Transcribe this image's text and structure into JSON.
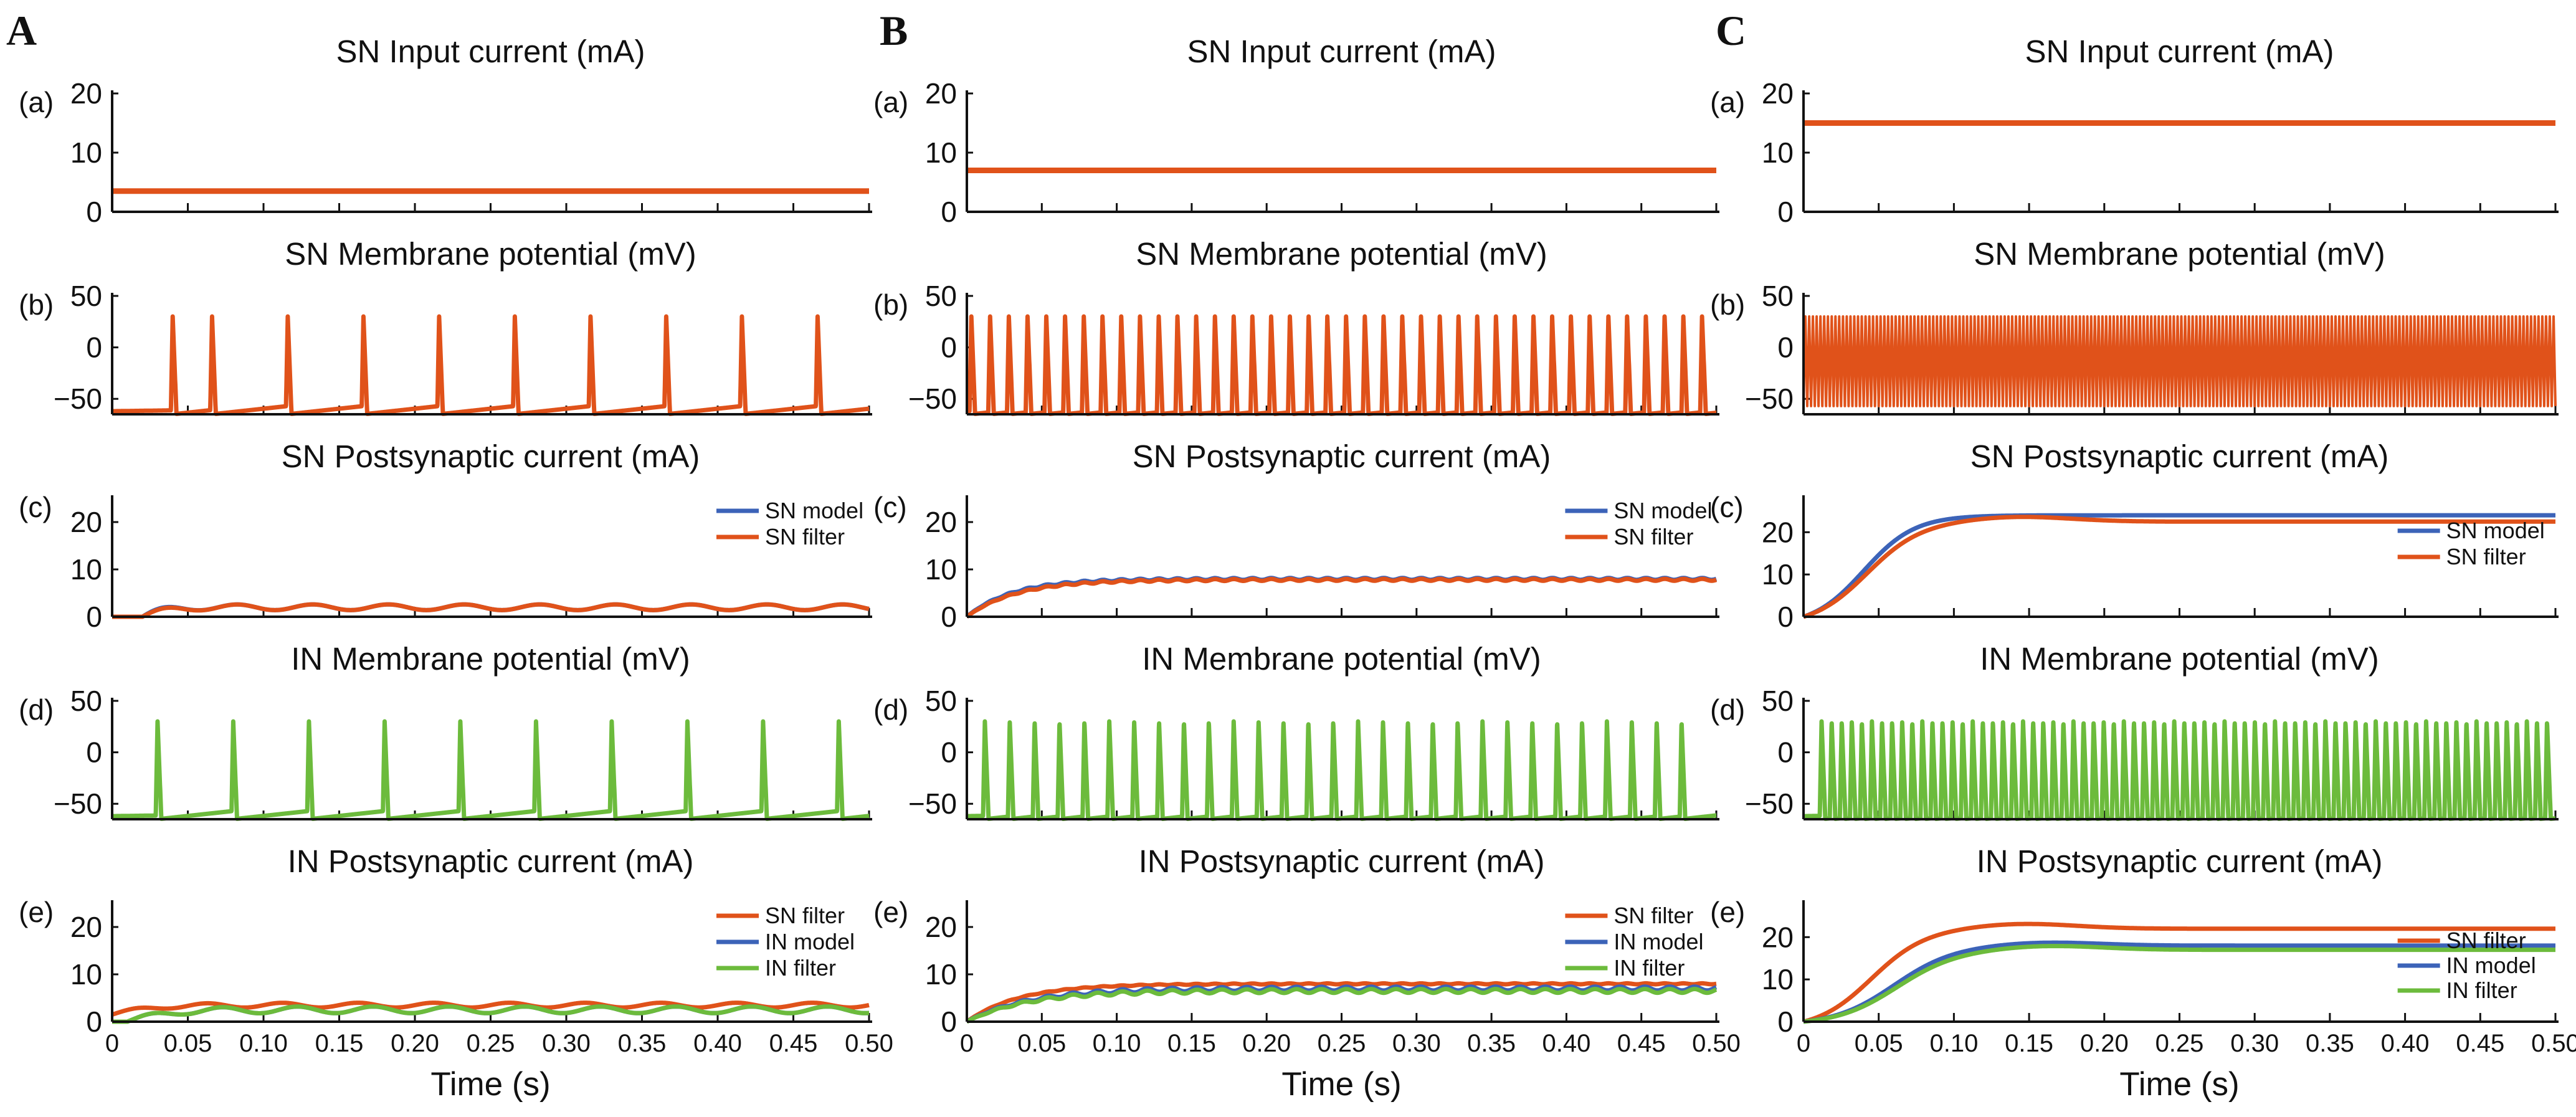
{
  "figure": {
    "columns": [
      "A",
      "B",
      "C"
    ],
    "colors": {
      "orange": "#E0521A",
      "blue": "#3C63B8",
      "green": "#6CBB3C"
    }
  },
  "chart_data": [
    {
      "column": "A",
      "panels": [
        {
          "label": "(a)",
          "type": "line",
          "title": "SN Input current (mA)",
          "yticks": [
            "20",
            "10",
            "0"
          ],
          "ylim": [
            0,
            20
          ],
          "series": [
            {
              "name": "SN input",
              "color": "#E0521A",
              "kind": "constant",
              "value": 3.5
            }
          ]
        },
        {
          "label": "(b)",
          "type": "line",
          "title": "SN Membrane potential (mV)",
          "yticks": [
            "50",
            "0",
            "−50"
          ],
          "ylim": [
            -65,
            50
          ],
          "series": [
            {
              "name": "SN membrane",
              "color": "#E0521A",
              "kind": "spikes",
              "spike_times": [
                0.04,
                0.066,
                0.116,
                0.166,
                0.216,
                0.266,
                0.316,
                0.366,
                0.416,
                0.466
              ]
            }
          ]
        },
        {
          "label": "(c)",
          "type": "line",
          "title": "SN Postsynaptic current (mA)",
          "yticks": [
            "20",
            "10",
            "0"
          ],
          "ylim": [
            0,
            25
          ],
          "legend": [
            "SN model",
            "SN filter"
          ],
          "series": [
            {
              "name": "SN model",
              "color": "#3C63B8",
              "kind": "ripple",
              "start": 0.02,
              "tau": 0.01,
              "level": 2.0,
              "amp": 0.6,
              "period": 0.05
            },
            {
              "name": "SN filter",
              "color": "#E0521A",
              "kind": "ripple",
              "start": 0.02,
              "tau": 0.012,
              "level": 2.0,
              "amp": 0.6,
              "period": 0.05
            }
          ]
        },
        {
          "label": "(d)",
          "type": "line",
          "title": "IN Membrane potential  (mV)",
          "yticks": [
            "50",
            "0",
            "−50"
          ],
          "ylim": [
            -65,
            50
          ],
          "series": [
            {
              "name": "IN membrane",
              "color": "#6CBB3C",
              "kind": "spikes",
              "spike_times": [
                0.03,
                0.08,
                0.13,
                0.18,
                0.23,
                0.28,
                0.33,
                0.38,
                0.43,
                0.48
              ]
            }
          ]
        },
        {
          "label": "(e)",
          "type": "line",
          "title": "IN Postsynaptic current (mA)",
          "yticks": [
            "20",
            "10",
            "0"
          ],
          "ylim": [
            0,
            25
          ],
          "legend": [
            "SN filter",
            "IN model",
            "IN filter"
          ],
          "series": [
            {
              "name": "SN filter",
              "color": "#E0521A",
              "kind": "ripple",
              "start": 0.0,
              "tau": 0.02,
              "level": 3.5,
              "amp": 0.5,
              "period": 0.05,
              "init": 1.5
            },
            {
              "name": "IN model",
              "color": "#3C63B8",
              "kind": "ripple",
              "start": 0.01,
              "tau": 0.02,
              "level": 2.5,
              "amp": 0.7,
              "period": 0.05
            },
            {
              "name": "IN filter",
              "color": "#6CBB3C",
              "kind": "ripple",
              "start": 0.01,
              "tau": 0.02,
              "level": 2.5,
              "amp": 0.7,
              "period": 0.05
            }
          ]
        }
      ]
    },
    {
      "column": "B",
      "panels": [
        {
          "label": "(a)",
          "type": "line",
          "title": "SN Input current (mA)",
          "yticks": [
            "20",
            "10",
            "0"
          ],
          "ylim": [
            0,
            20
          ],
          "series": [
            {
              "name": "SN input",
              "color": "#E0521A",
              "kind": "constant",
              "value": 7
            }
          ]
        },
        {
          "label": "(b)",
          "type": "line",
          "title": "SN Membrane potential  (mV)",
          "yticks": [
            "50",
            "0",
            "−50"
          ],
          "ylim": [
            -65,
            50
          ],
          "series": [
            {
              "name": "SN membrane",
              "color": "#E0521A",
              "kind": "train",
              "first": 0.003,
              "interval": 0.0125,
              "until": 0.496
            }
          ]
        },
        {
          "label": "(c)",
          "type": "line",
          "title": "SN Postsynaptic current (mA)",
          "yticks": [
            "20",
            "10",
            "0"
          ],
          "ylim": [
            0,
            25
          ],
          "legend": [
            "SN model",
            "SN filter"
          ],
          "series": [
            {
              "name": "SN model",
              "color": "#3C63B8",
              "kind": "rise",
              "start": 0.0,
              "tau": 0.03,
              "level": 8,
              "amp": 0.2,
              "period": 0.0125
            },
            {
              "name": "SN filter",
              "color": "#E0521A",
              "kind": "rise",
              "start": 0.0,
              "tau": 0.033,
              "level": 7.8,
              "amp": 0.2,
              "period": 0.0125
            }
          ]
        },
        {
          "label": "(d)",
          "type": "line",
          "title": "IN Membrane potential  (mV)",
          "yticks": [
            "50",
            "0",
            "−50"
          ],
          "ylim": [
            -65,
            50
          ],
          "series": [
            {
              "name": "IN membrane",
              "color": "#6CBB3C",
              "kind": "train",
              "first": 0.012,
              "interval": 0.0166,
              "until": 0.49
            }
          ]
        },
        {
          "label": "(e)",
          "type": "line",
          "title": "IN Postsynaptic current (mA)",
          "yticks": [
            "20",
            "10",
            "0"
          ],
          "ylim": [
            0,
            25
          ],
          "legend": [
            "SN filter",
            "IN model",
            "IN filter"
          ],
          "series": [
            {
              "name": "SN filter",
              "color": "#E0521A",
              "kind": "rise",
              "start": 0.0,
              "tau": 0.035,
              "level": 8,
              "amp": 0.1,
              "period": 0.0125
            },
            {
              "name": "IN model",
              "color": "#3C63B8",
              "kind": "rise",
              "start": 0.0,
              "tau": 0.04,
              "level": 7,
              "amp": 0.4,
              "period": 0.0166
            },
            {
              "name": "IN filter",
              "color": "#6CBB3C",
              "kind": "rise",
              "start": 0.0,
              "tau": 0.04,
              "level": 6.5,
              "amp": 0.4,
              "period": 0.0166
            }
          ]
        }
      ]
    },
    {
      "column": "C",
      "panels": [
        {
          "label": "(a)",
          "type": "line",
          "title": "SN Input current (mA)",
          "yticks": [
            "20",
            "10",
            "0"
          ],
          "ylim": [
            0,
            20
          ],
          "series": [
            {
              "name": "SN input",
              "color": "#E0521A",
              "kind": "constant",
              "value": 15
            }
          ]
        },
        {
          "label": "(b)",
          "type": "line",
          "title": "SN Membrane potential  (mV)",
          "yticks": [
            "50",
            "0",
            "−50"
          ],
          "ylim": [
            -65,
            50
          ],
          "series": [
            {
              "name": "SN membrane",
              "color": "#E0521A",
              "kind": "dense",
              "low": -57,
              "high": 30
            }
          ]
        },
        {
          "label": "(c)",
          "type": "line",
          "title": "SN Postsynaptic current (mA)",
          "yticks": [
            "20",
            "10",
            "0"
          ],
          "ylim": [
            0,
            28
          ],
          "legend": [
            "SN model",
            "SN filter"
          ],
          "series": [
            {
              "name": "SN model",
              "color": "#3C63B8",
              "kind": "sigmoid",
              "level": 24,
              "t50": 0.04,
              "k": 0.017,
              "overshoot": 0
            },
            {
              "name": "SN filter",
              "color": "#E0521A",
              "kind": "sigmoid",
              "level": 22.5,
              "t50": 0.042,
              "k": 0.018,
              "overshoot": 1.2
            }
          ]
        },
        {
          "label": "(d)",
          "type": "line",
          "title": "IN Membrane potential (mV)",
          "yticks": [
            "50",
            "0",
            "−50"
          ],
          "ylim": [
            -65,
            50
          ],
          "series": [
            {
              "name": "IN membrane",
              "color": "#6CBB3C",
              "kind": "train",
              "first": 0.012,
              "interval": 0.0067,
              "until": 0.5
            }
          ]
        },
        {
          "label": "(e)",
          "type": "line",
          "title": "IN Postsynaptic current (mA)",
          "yticks": [
            "20",
            "10",
            "0"
          ],
          "ylim": [
            0,
            28
          ],
          "legend": [
            "SN filter",
            "IN model",
            "IN filter"
          ],
          "series": [
            {
              "name": "SN filter",
              "color": "#E0521A",
              "kind": "sigmoid",
              "level": 22,
              "t50": 0.045,
              "k": 0.018,
              "overshoot": 1.2
            },
            {
              "name": "IN model",
              "color": "#3C63B8",
              "kind": "sigmoid",
              "level": 18,
              "t50": 0.06,
              "k": 0.02,
              "overshoot": 0.8
            },
            {
              "name": "IN filter",
              "color": "#6CBB3C",
              "kind": "sigmoid",
              "level": 17,
              "t50": 0.062,
              "k": 0.02,
              "overshoot": 1.0
            }
          ]
        }
      ]
    }
  ],
  "x_axis": {
    "label": "Time (s)",
    "xlim": [
      0,
      0.5
    ],
    "ticks": [
      "0",
      "0.05",
      "0.10",
      "0.15",
      "0.20",
      "0.25",
      "0.30",
      "0.35",
      "0.40",
      "0.45",
      "0.50"
    ]
  }
}
